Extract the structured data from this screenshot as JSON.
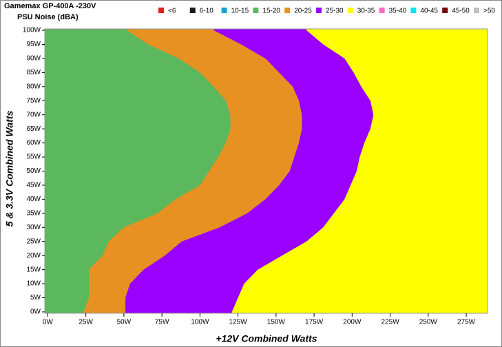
{
  "chart_data": {
    "type": "band-map",
    "title": "Gamemax GP-400A -230V",
    "subtitle": "PSU Noise (dBA)",
    "x_label": "+12V Combined Watts",
    "y_label": "5 & 3.3V Combined Watts",
    "legend": [
      {
        "name": "<6",
        "color": "#e02020"
      },
      {
        "name": "6-10",
        "color": "#1a1a1a"
      },
      {
        "name": "10-15",
        "color": "#1a9fd6"
      },
      {
        "name": "15-20",
        "color": "#5cb85c"
      },
      {
        "name": "20-25",
        "color": "#e69122"
      },
      {
        "name": "25-30",
        "color": "#9900ff"
      },
      {
        "name": "30-35",
        "color": "#ffff00"
      },
      {
        "name": "35-40",
        "color": "#ff66cc"
      },
      {
        "name": "40-45",
        "color": "#00e5ee"
      },
      {
        "name": "45-50",
        "color": "#7a0000"
      },
      {
        "name": ">50",
        "color": "#c0c0c0"
      }
    ],
    "y": [
      0,
      5,
      10,
      15,
      20,
      25,
      30,
      35,
      40,
      45,
      50,
      55,
      60,
      65,
      70,
      75,
      80,
      85,
      90,
      95,
      100
    ],
    "boundaries": [
      {
        "below": "15-20",
        "above": "20-25",
        "values": [
          23.5,
          27,
          27,
          27,
          36,
          40,
          50,
          72,
          84,
          100,
          106,
          112,
          117,
          120,
          120,
          117,
          109,
          100,
          86,
          66,
          52
        ]
      },
      {
        "below": "20-25",
        "above": "25-30",
        "values": [
          51,
          51,
          54,
          63,
          77,
          88,
          113,
          131,
          143,
          152,
          159,
          162,
          165,
          167,
          167,
          165,
          161,
          152,
          143,
          127,
          109
        ]
      },
      {
        "below": "25-30",
        "above": "30-35",
        "values": [
          121,
          125,
          129,
          138,
          154,
          170,
          181,
          188,
          195,
          199,
          203,
          205,
          208,
          212,
          214,
          212,
          206,
          201,
          195,
          181,
          170
        ]
      }
    ],
    "xlim": [
      -2,
      289
    ],
    "ylim": [
      -0.5,
      100.5
    ],
    "xticks": [
      {
        "value": 0,
        "label": "0W"
      },
      {
        "value": 25,
        "label": "25W"
      },
      {
        "value": 50,
        "label": "50W"
      },
      {
        "value": 75,
        "label": "75W"
      },
      {
        "value": 100,
        "label": "100W"
      },
      {
        "value": 125,
        "label": "125W"
      },
      {
        "value": 150,
        "label": "150W"
      },
      {
        "value": 175,
        "label": "175W"
      },
      {
        "value": 200,
        "label": "200W"
      },
      {
        "value": 225,
        "label": "225W"
      },
      {
        "value": 250,
        "label": "250W"
      },
      {
        "value": 275,
        "label": "275W"
      }
    ],
    "yticks": [
      {
        "value": 0,
        "label": "0W"
      },
      {
        "value": 5,
        "label": "5W"
      },
      {
        "value": 10,
        "label": "10W"
      },
      {
        "value": 15,
        "label": "15W"
      },
      {
        "value": 20,
        "label": "20W"
      },
      {
        "value": 25,
        "label": "25W"
      },
      {
        "value": 30,
        "label": "30W"
      },
      {
        "value": 35,
        "label": "35W"
      },
      {
        "value": 40,
        "label": "40W"
      },
      {
        "value": 45,
        "label": "45W"
      },
      {
        "value": 50,
        "label": "50W"
      },
      {
        "value": 55,
        "label": "55W"
      },
      {
        "value": 60,
        "label": "60W"
      },
      {
        "value": 65,
        "label": "65W"
      },
      {
        "value": 70,
        "label": "70W"
      },
      {
        "value": 75,
        "label": "75W"
      },
      {
        "value": 80,
        "label": "80W"
      },
      {
        "value": 85,
        "label": "85W"
      },
      {
        "value": 90,
        "label": "90W"
      },
      {
        "value": 95,
        "label": "95W"
      },
      {
        "value": 100,
        "label": "100W"
      }
    ]
  }
}
